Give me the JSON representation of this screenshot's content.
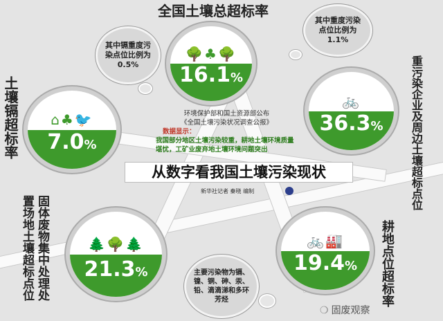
{
  "banner_title": "从数字看我国土壤污染现状",
  "info": {
    "source_line1": "环境保护部和国土资源部公布",
    "source_line2": "《全国土壤污染状况调查公报》",
    "label": "数据显示：",
    "body": "我国部分地区土壤污染较重，耕地土壤环境质量堪忧，工矿业废弃地土壤环境问题突出"
  },
  "credit": "新华社记者 秦晓 编制",
  "stats": [
    {
      "title": "全国土壤总超标率",
      "value": "16.1",
      "unit": "%"
    },
    {
      "title": "土壤镉超标率",
      "value": "7.0",
      "unit": "%"
    },
    {
      "title": "重污染企业及周边土壤超标点位",
      "value": "36.3",
      "unit": "%"
    },
    {
      "title": "固体废物集中处理处置场地土壤超标点位",
      "value": "21.3",
      "unit": "%"
    },
    {
      "title": "耕地点位超标率",
      "value": "19.4",
      "unit": "%"
    }
  ],
  "bubbles": [
    {
      "text": "其中镉重度污染点位比例为0.5%"
    },
    {
      "text": "其中重度污染点位比例为1.1%"
    },
    {
      "text": "主要污染物为镉、镍、铜、砷、汞、铅、滴滴涕和多环芳烃"
    }
  ],
  "watermark": "固废观察",
  "colors": {
    "green": "#3e9a2c",
    "accent_red": "#c0392b"
  }
}
